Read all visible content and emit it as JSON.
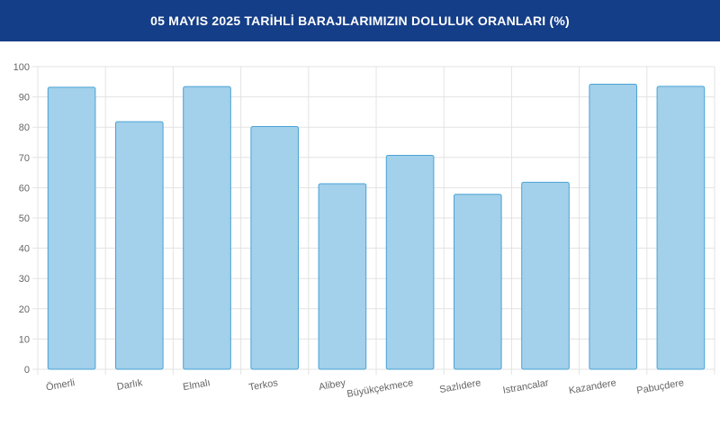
{
  "header": {
    "title": "05 MAYIS 2025 TARİHLİ BARAJLARIMIZIN DOLULUK ORANLARI (%)"
  },
  "colors": {
    "header_bg": "#153e88",
    "bar_fill": "#a3d0ea",
    "bar_stroke": "#4aa3d6",
    "grid": "#e3e3e3"
  },
  "chart_data": {
    "type": "bar",
    "title": "05 MAYIS 2025 TARİHLİ BARAJLARIMIZIN DOLULUK ORANLARI (%)",
    "categories": [
      "Ömerli",
      "Darlık",
      "Elmalı",
      "Terkos",
      "Alibey",
      "Büyükçekmece",
      "Sazlıdere",
      "Istrancalar",
      "Kazandere",
      "Pabuçdere"
    ],
    "values": [
      93.2,
      81.8,
      93.4,
      80.2,
      61.3,
      70.7,
      57.8,
      61.8,
      94.2,
      93.5
    ],
    "ylim": [
      0,
      100
    ],
    "yticks": [
      0,
      10,
      20,
      30,
      40,
      50,
      60,
      70,
      80,
      90,
      100
    ],
    "xlabel": "",
    "ylabel": "",
    "grid": true,
    "legend": "none"
  }
}
